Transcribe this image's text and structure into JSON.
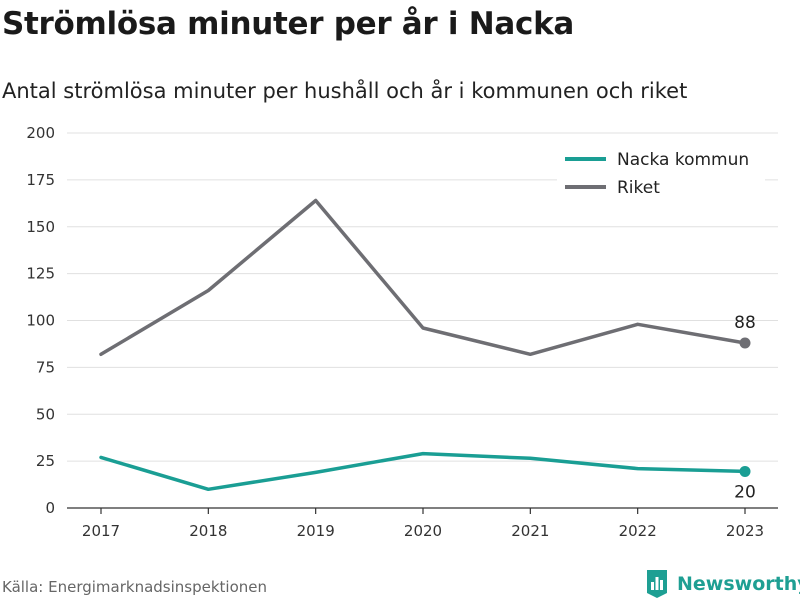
{
  "header": {
    "title": "Strömlösa minuter per år i Nacka",
    "subtitle": "Antal strömlösa minuter per hushåll och år i kommunen och riket"
  },
  "footer": {
    "source": "Källa: Energimarknadsinspektionen",
    "brand": "Newsworthy",
    "brand_icon": "bar-chart-logo-icon"
  },
  "colors": {
    "nacka": "#1a9e94",
    "riket": "#6e6e73",
    "grid": "#e0e0e0",
    "axis": "#333333",
    "brand": "#1e9f93"
  },
  "chart_data": {
    "type": "line",
    "title": "Strömlösa minuter per år i Nacka",
    "subtitle": "Antal strömlösa minuter per hushåll och år i kommunen och riket",
    "x": [
      2017,
      2018,
      2019,
      2020,
      2021,
      2022,
      2023
    ],
    "ylim": [
      0,
      200
    ],
    "yticks": [
      0,
      25,
      50,
      75,
      100,
      125,
      150,
      175,
      200
    ],
    "grid": true,
    "legend_position": "top-right",
    "series": [
      {
        "name": "Nacka kommun",
        "color": "#1a9e94",
        "values": [
          27,
          10,
          19,
          29,
          26.5,
          21,
          19.5
        ],
        "end_label": "20"
      },
      {
        "name": "Riket",
        "color": "#6e6e73",
        "values": [
          82,
          116,
          164,
          96,
          82,
          98,
          88
        ],
        "end_label": "88"
      }
    ]
  }
}
